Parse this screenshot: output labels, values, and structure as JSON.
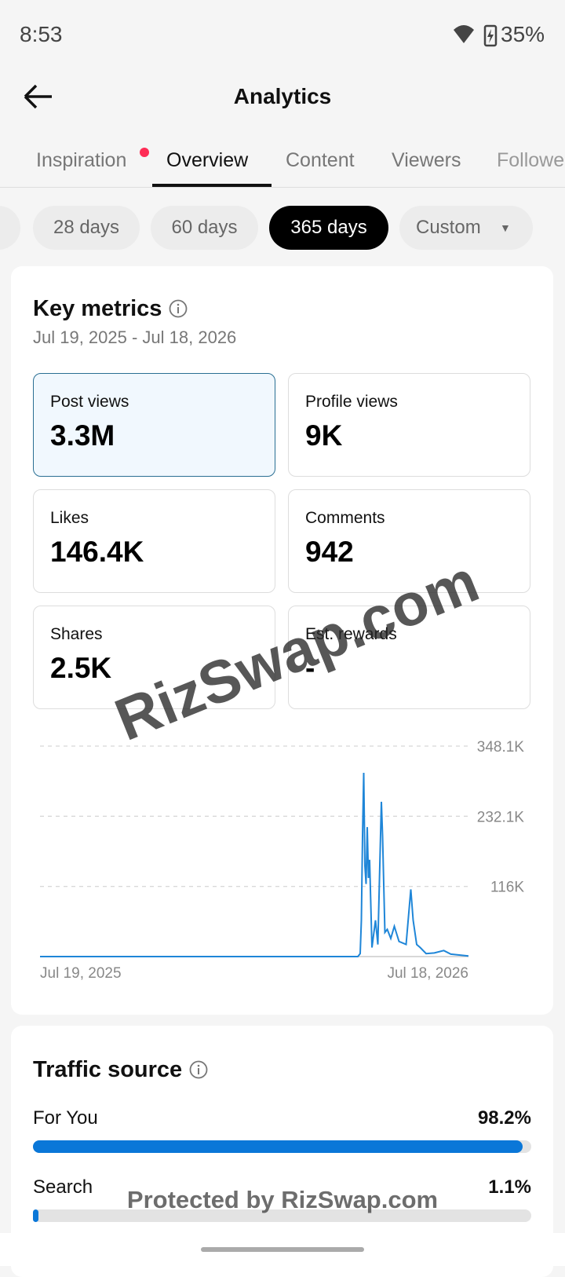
{
  "status": {
    "time": "8:53",
    "battery": "35%"
  },
  "header": {
    "title": "Analytics"
  },
  "tabs": [
    "Inspiration",
    "Overview",
    "Content",
    "Viewers",
    "Followers"
  ],
  "ranges": [
    "28 days",
    "60 days",
    "365 days",
    "Custom"
  ],
  "key_metrics": {
    "title": "Key metrics",
    "date_range": "Jul 19, 2025 - Jul 18, 2026",
    "metrics": [
      {
        "label": "Post views",
        "value": "3.3M"
      },
      {
        "label": "Profile views",
        "value": "9K"
      },
      {
        "label": "Likes",
        "value": "146.4K"
      },
      {
        "label": "Comments",
        "value": "942"
      },
      {
        "label": "Shares",
        "value": "2.5K"
      },
      {
        "label": "Est. rewards",
        "value": "-"
      }
    ]
  },
  "chart": {
    "type": "line",
    "color": "#1f86d8",
    "x": [
      0,
      270,
      272,
      273,
      274,
      275,
      276,
      277,
      278,
      279,
      280,
      282,
      285,
      287,
      290,
      291,
      293,
      295,
      298,
      301,
      305,
      311,
      315,
      317,
      320,
      323,
      328,
      335,
      343,
      349,
      364
    ],
    "values": [
      0,
      0,
      5000,
      60000,
      200000,
      304000,
      150000,
      120000,
      214000,
      130000,
      160000,
      15000,
      60000,
      20000,
      256000,
      200000,
      40000,
      45000,
      30000,
      50000,
      25000,
      20000,
      111000,
      60000,
      20000,
      15000,
      5000,
      6000,
      10000,
      4000,
      1000
    ],
    "xlim": [
      0,
      364
    ],
    "ylim": [
      0,
      348100
    ],
    "yticks": [
      {
        "value": 116000,
        "label": "116K"
      },
      {
        "value": 232100,
        "label": "232.1K"
      },
      {
        "value": 348100,
        "label": "348.1K"
      }
    ],
    "x_labels": [
      "Jul 19, 2025",
      "Jul 18, 2026"
    ]
  },
  "traffic": {
    "title": "Traffic source",
    "sources": [
      {
        "name": "For You",
        "value": 98.2,
        "value_label": "98.2%"
      },
      {
        "name": "Search",
        "value": 1.1,
        "value_label": "1.1%"
      }
    ]
  },
  "watermarks": [
    "RizSwap.com",
    "Protected by RizSwap.com"
  ]
}
